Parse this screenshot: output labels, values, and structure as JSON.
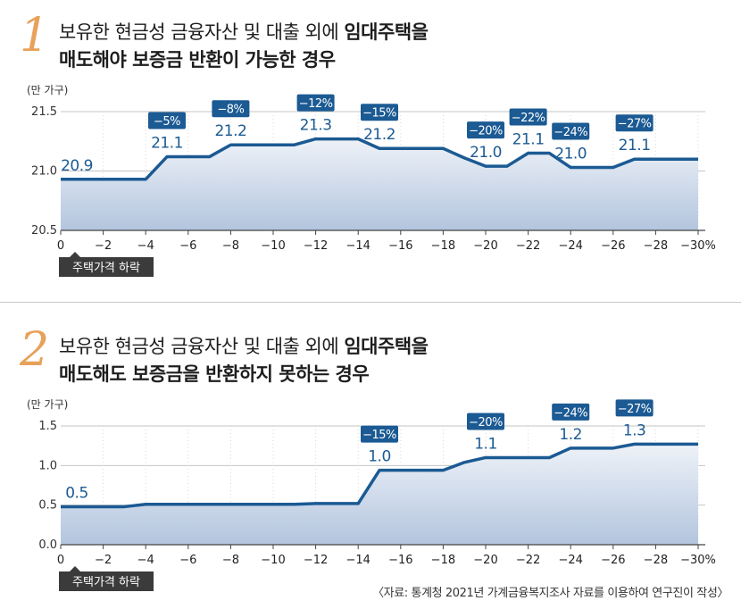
{
  "source": "〈자료: 통계청 2021년 가계금융복지조사 자료를 이용하여 연구진이 작성〉",
  "colors": {
    "line": "#1b5a93",
    "label_box": "#1b5a93",
    "area_top": "#eef2f8",
    "area_bottom": "#b3c5de",
    "number_accent": "#e8a15a",
    "grid": "#c4c4c4"
  },
  "panels": [
    {
      "number": "1",
      "title_line1_plain": "보유한 현금성 금융자산 및 대출 외에 ",
      "title_line1_bold": "임대주택을",
      "title_line2": "매도해야 보증금 반환이 가능한 경우",
      "unit": "(만 가구)",
      "x_badge": "주택가격 하락"
    },
    {
      "number": "2",
      "title_line1_plain": "보유한 현금성 금융자산 및 대출 외에 ",
      "title_line1_bold": "임대주택을",
      "title_line2": "매도해도 보증금을 반환하지 못하는 경우",
      "unit": "(만 가구)",
      "x_badge": "주택가격 하락"
    }
  ],
  "chart_data": [
    {
      "type": "area",
      "title": "보유한 현금성 금융자산 및 대출 외에 임대주택을 매도해야 보증금 반환이 가능한 경우",
      "ylabel": "(만 가구)",
      "xlabel": "주택가격 하락",
      "ylim": [
        20.5,
        21.5
      ],
      "yticks": [
        "20.5",
        "21.0",
        "21.5"
      ],
      "ytick_values": [
        20.5,
        21.0,
        21.5
      ],
      "xlim": [
        0,
        -30
      ],
      "xticks": [
        "0",
        "−2",
        "−4",
        "−6",
        "−8",
        "−10",
        "−12",
        "−14",
        "−16",
        "−18",
        "−20",
        "−22",
        "−24",
        "−26",
        "−28",
        "−30%"
      ],
      "xtick_values": [
        0,
        -2,
        -4,
        -6,
        -8,
        -10,
        -12,
        -14,
        -16,
        -18,
        -20,
        -22,
        -24,
        -26,
        -28,
        -30
      ],
      "grid": true,
      "x": [
        0,
        -1,
        -2,
        -3,
        -4,
        -5,
        -6,
        -7,
        -8,
        -9,
        -10,
        -11,
        -12,
        -13,
        -14,
        -15,
        -16,
        -17,
        -18,
        -19,
        -20,
        -21,
        -22,
        -23,
        -24,
        -25,
        -26,
        -27,
        -28,
        -29,
        -30
      ],
      "y": [
        20.93,
        20.93,
        20.93,
        20.93,
        20.93,
        21.12,
        21.12,
        21.12,
        21.22,
        21.22,
        21.22,
        21.22,
        21.27,
        21.27,
        21.27,
        21.19,
        21.19,
        21.19,
        21.19,
        21.11,
        21.04,
        21.04,
        21.15,
        21.15,
        21.03,
        21.03,
        21.03,
        21.1,
        21.1,
        21.1,
        21.1
      ],
      "annotations": [
        {
          "x": 0,
          "y": 20.93,
          "value": "20.9",
          "tag": ""
        },
        {
          "x": -5,
          "y": 21.12,
          "value": "21.1",
          "tag": "−5%"
        },
        {
          "x": -8,
          "y": 21.22,
          "value": "21.2",
          "tag": "−8%"
        },
        {
          "x": -12,
          "y": 21.27,
          "value": "21.3",
          "tag": "−12%"
        },
        {
          "x": -15,
          "y": 21.19,
          "value": "21.2",
          "tag": "−15%"
        },
        {
          "x": -20,
          "y": 21.04,
          "value": "21.0",
          "tag": "−20%"
        },
        {
          "x": -22,
          "y": 21.15,
          "value": "21.1",
          "tag": "−22%"
        },
        {
          "x": -24,
          "y": 21.03,
          "value": "21.0",
          "tag": "−24%"
        },
        {
          "x": -27,
          "y": 21.1,
          "value": "21.1",
          "tag": "−27%"
        }
      ]
    },
    {
      "type": "area",
      "title": "보유한 현금성 금융자산 및 대출 외에 임대주택을 매도해도 보증금을 반환하지 못하는 경우",
      "ylabel": "(만 가구)",
      "xlabel": "주택가격 하락",
      "ylim": [
        0.0,
        1.5
      ],
      "yticks": [
        "0.0",
        "0.5",
        "1.0",
        "1.5"
      ],
      "ytick_values": [
        0.0,
        0.5,
        1.0,
        1.5
      ],
      "xlim": [
        0,
        -30
      ],
      "xticks": [
        "0",
        "−2",
        "−4",
        "−6",
        "−8",
        "−10",
        "−12",
        "−14",
        "−16",
        "−18",
        "−20",
        "−22",
        "−24",
        "−26",
        "−28",
        "−30%"
      ],
      "xtick_values": [
        0,
        -2,
        -4,
        -6,
        -8,
        -10,
        -12,
        -14,
        -16,
        -18,
        -20,
        -22,
        -24,
        -26,
        -28,
        -30
      ],
      "grid": true,
      "x": [
        0,
        -1,
        -2,
        -3,
        -4,
        -5,
        -6,
        -7,
        -8,
        -9,
        -10,
        -11,
        -12,
        -13,
        -14,
        -15,
        -16,
        -17,
        -18,
        -19,
        -20,
        -21,
        -22,
        -23,
        -24,
        -25,
        -26,
        -27,
        -28,
        -29,
        -30
      ],
      "y": [
        0.48,
        0.48,
        0.48,
        0.48,
        0.51,
        0.51,
        0.51,
        0.51,
        0.51,
        0.51,
        0.51,
        0.51,
        0.52,
        0.52,
        0.52,
        0.94,
        0.94,
        0.94,
        0.94,
        1.04,
        1.1,
        1.1,
        1.1,
        1.1,
        1.22,
        1.22,
        1.22,
        1.27,
        1.27,
        1.27,
        1.27
      ],
      "annotations": [
        {
          "x": 0,
          "y": 0.48,
          "value": "0.5",
          "tag": ""
        },
        {
          "x": -15,
          "y": 0.94,
          "value": "1.0",
          "tag": "−15%"
        },
        {
          "x": -20,
          "y": 1.1,
          "value": "1.1",
          "tag": "−20%"
        },
        {
          "x": -24,
          "y": 1.22,
          "value": "1.2",
          "tag": "−24%"
        },
        {
          "x": -27,
          "y": 1.27,
          "value": "1.3",
          "tag": "−27%"
        }
      ]
    }
  ]
}
